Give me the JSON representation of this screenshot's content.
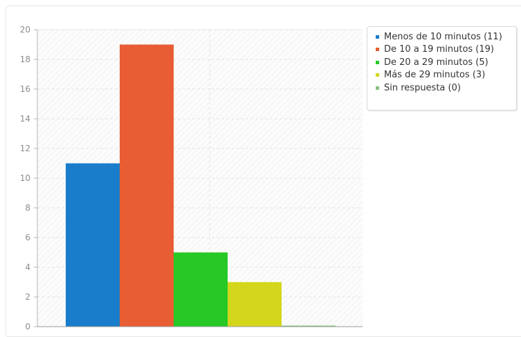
{
  "chart_data": {
    "type": "bar",
    "categories": [
      "Menos de 10 minutos (11)",
      "De 10 a 19 minutos (19)",
      "De 20 a 29 minutos (5)",
      "Más de 29 minutos (3)",
      "Sin respuesta (0)"
    ],
    "values": [
      11,
      19,
      5,
      3,
      0
    ],
    "colors": [
      "#1a7dcb",
      "#e85d33",
      "#27c926",
      "#d4d61b",
      "#84c37e"
    ],
    "ylim": [
      0,
      20
    ],
    "yticks": [
      "0",
      "2",
      "4",
      "6",
      "8",
      "10",
      "12",
      "14",
      "16",
      "18",
      "20"
    ],
    "grid": true,
    "legend_position": "top-right",
    "title": "",
    "xlabel": "",
    "ylabel": ""
  },
  "legend": {
    "items": [
      {
        "label": "Menos de 10 minutos (11)",
        "color": "#1a7dcb"
      },
      {
        "label": "De 10 a 19 minutos (19)",
        "color": "#e85d33"
      },
      {
        "label": "De 20 a 29 minutos (5)",
        "color": "#27c926"
      },
      {
        "label": "Más de 29 minutos (3)",
        "color": "#d4d61b"
      },
      {
        "label": "Sin respuesta (0)",
        "color": "#84c37e"
      }
    ]
  }
}
